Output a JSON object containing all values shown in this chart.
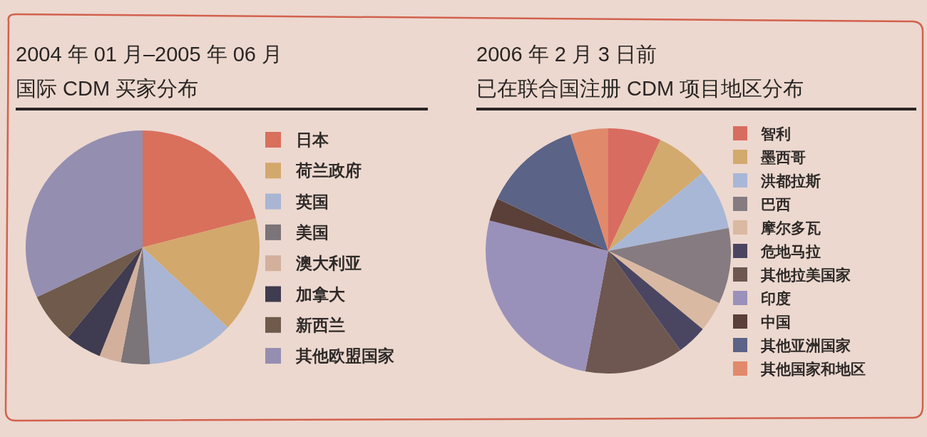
{
  "chart_data": [
    {
      "type": "pie",
      "title": "2004 年 01 月–2005 年 06 月",
      "subtitle": "国际 CDM 买家分布",
      "categories": [
        "日本",
        "荷兰政府",
        "英国",
        "美国",
        "澳大利亚",
        "加拿大",
        "新西兰",
        "其他欧盟国家"
      ],
      "values": [
        21,
        16,
        12,
        4,
        3,
        5,
        7,
        32
      ],
      "colors": [
        "#d8705c",
        "#d3a86c",
        "#a9b5d2",
        "#7b7479",
        "#d2b09c",
        "#3f3b50",
        "#6f5a4b",
        "#948eb0"
      ],
      "legend": "right"
    },
    {
      "type": "pie",
      "title": "2006 年 2 月 3 日前",
      "subtitle": "已在联合国注册 CDM 项目地区分布",
      "categories": [
        "智利",
        "墨西哥",
        "洪都拉斯",
        "巴西",
        "摩尔多瓦",
        "危地马拉",
        "其他拉美国家",
        "印度",
        "中国",
        "其他亚洲国家",
        "其他国家和地区"
      ],
      "values": [
        7,
        7,
        8,
        10,
        4,
        4,
        13,
        26,
        3,
        13,
        5
      ],
      "colors": [
        "#d96c60",
        "#d2aa6e",
        "#a8b7d6",
        "#857b81",
        "#dab9a2",
        "#4a4662",
        "#6e5751",
        "#9991ba",
        "#5b3f39",
        "#5b6386",
        "#e1896b"
      ],
      "legend": "right"
    }
  ]
}
